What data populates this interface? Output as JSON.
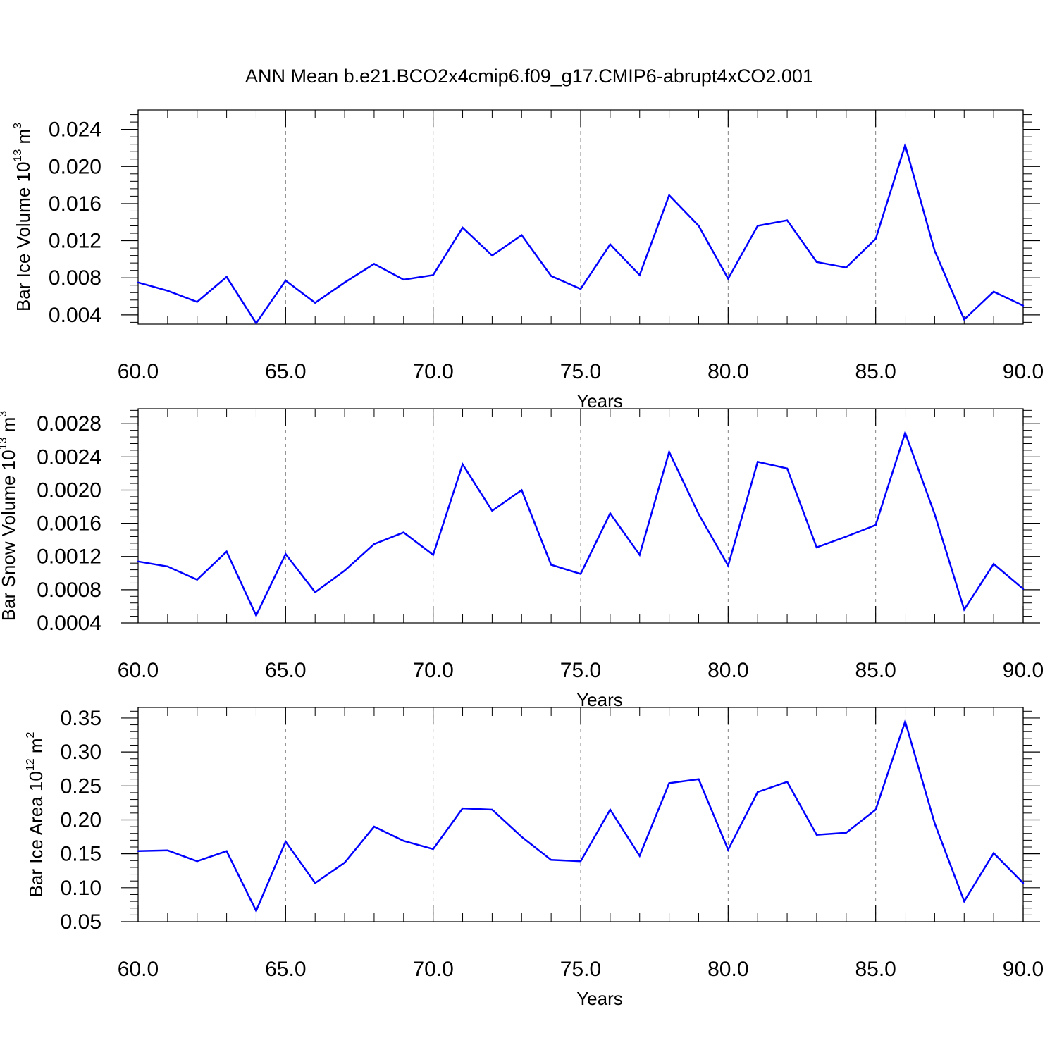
{
  "title": "ANN Mean b.e21.BCO2x4cmip6.f09_g17.CMIP6-abrupt4xCO2.001",
  "colors": {
    "line": "#0000ff",
    "axis": "#000000",
    "grid": "#808080"
  },
  "chart_data": [
    {
      "type": "line",
      "ylabel": "Bar Ice Volume 10",
      "ylabel_exp": "13",
      "ylabel_unit": " m",
      "ylabel_unit_exp": "3",
      "xlabel": "Years",
      "xlim": [
        60,
        90
      ],
      "ylim": [
        0.003,
        0.0261
      ],
      "yticks": [
        0.004,
        0.008,
        0.012,
        0.016,
        0.02,
        0.024
      ],
      "ytick_labels": [
        "0.004",
        "0.008",
        "0.012",
        "0.016",
        "0.020",
        "0.024"
      ],
      "xticks": [
        60,
        65,
        70,
        75,
        80,
        85,
        90
      ],
      "xtick_labels": [
        "60.0",
        "65.0",
        "70.0",
        "75.0",
        "80.0",
        "85.0",
        "90.0"
      ],
      "grid": "vertical dashed",
      "series": [
        {
          "x": [
            60,
            61,
            62,
            63,
            64,
            65,
            66,
            67,
            68,
            69,
            70,
            71,
            72,
            73,
            74,
            75,
            76,
            77,
            78,
            79,
            80,
            81,
            82,
            83,
            84,
            85,
            86,
            87,
            88,
            89,
            90
          ],
          "values": [
            0.0075,
            0.0066,
            0.0054,
            0.0081,
            0.0031,
            0.0077,
            0.0053,
            0.0075,
            0.0095,
            0.0078,
            0.0083,
            0.0134,
            0.0104,
            0.0126,
            0.0082,
            0.0068,
            0.0116,
            0.0083,
            0.0169,
            0.0136,
            0.0079,
            0.0136,
            0.0142,
            0.0097,
            0.0091,
            0.0122,
            0.0223,
            0.0109,
            0.0035,
            0.0065,
            0.005
          ]
        }
      ]
    },
    {
      "type": "line",
      "ylabel": "Bar Snow Volume 10",
      "ylabel_exp": "13",
      "ylabel_unit": " m",
      "ylabel_unit_exp": "3",
      "xlabel": "Years",
      "xlim": [
        60,
        90
      ],
      "ylim": [
        0.0004,
        0.00298
      ],
      "yticks": [
        0.0004,
        0.0008,
        0.0012,
        0.0016,
        0.002,
        0.0024,
        0.0028
      ],
      "ytick_labels": [
        "0.0004",
        "0.0008",
        "0.0012",
        "0.0016",
        "0.0020",
        "0.0024",
        "0.0028"
      ],
      "xticks": [
        60,
        65,
        70,
        75,
        80,
        85,
        90
      ],
      "xtick_labels": [
        "60.0",
        "65.0",
        "70.0",
        "75.0",
        "80.0",
        "85.0",
        "90.0"
      ],
      "grid": "vertical dashed",
      "series": [
        {
          "x": [
            60,
            61,
            62,
            63,
            64,
            65,
            66,
            67,
            68,
            69,
            70,
            71,
            72,
            73,
            74,
            75,
            76,
            77,
            78,
            79,
            80,
            81,
            82,
            83,
            84,
            85,
            86,
            87,
            88,
            89,
            90
          ],
          "values": [
            0.00114,
            0.00108,
            0.00092,
            0.00126,
            0.00049,
            0.00123,
            0.00077,
            0.00103,
            0.00135,
            0.00149,
            0.00122,
            0.00231,
            0.00175,
            0.002,
            0.0011,
            0.00099,
            0.00172,
            0.00122,
            0.00246,
            0.00171,
            0.00109,
            0.00234,
            0.00226,
            0.00131,
            0.00144,
            0.00158,
            0.00269,
            0.00171,
            0.00056,
            0.00111,
            0.00081
          ]
        }
      ]
    },
    {
      "type": "line",
      "ylabel": "Bar Ice Area 10",
      "ylabel_exp": "12",
      "ylabel_unit": " m",
      "ylabel_unit_exp": "2",
      "xlabel": "Years",
      "xlim": [
        60,
        90
      ],
      "ylim": [
        0.05,
        0.3655
      ],
      "yticks": [
        0.05,
        0.1,
        0.15,
        0.2,
        0.25,
        0.3,
        0.35
      ],
      "ytick_labels": [
        "0.05",
        "0.10",
        "0.15",
        "0.20",
        "0.25",
        "0.30",
        "0.35"
      ],
      "xticks": [
        60,
        65,
        70,
        75,
        80,
        85,
        90
      ],
      "xtick_labels": [
        "60.0",
        "65.0",
        "70.0",
        "75.0",
        "80.0",
        "85.0",
        "90.0"
      ],
      "grid": "vertical dashed",
      "series": [
        {
          "x": [
            60,
            61,
            62,
            63,
            64,
            65,
            66,
            67,
            68,
            69,
            70,
            71,
            72,
            73,
            74,
            75,
            76,
            77,
            78,
            79,
            80,
            81,
            82,
            83,
            84,
            85,
            86,
            87,
            88,
            89,
            90
          ],
          "values": [
            0.154,
            0.155,
            0.139,
            0.154,
            0.066,
            0.168,
            0.107,
            0.137,
            0.19,
            0.169,
            0.157,
            0.217,
            0.215,
            0.175,
            0.141,
            0.139,
            0.215,
            0.147,
            0.254,
            0.26,
            0.156,
            0.241,
            0.256,
            0.178,
            0.181,
            0.215,
            0.345,
            0.195,
            0.08,
            0.151,
            0.107
          ]
        }
      ]
    }
  ]
}
